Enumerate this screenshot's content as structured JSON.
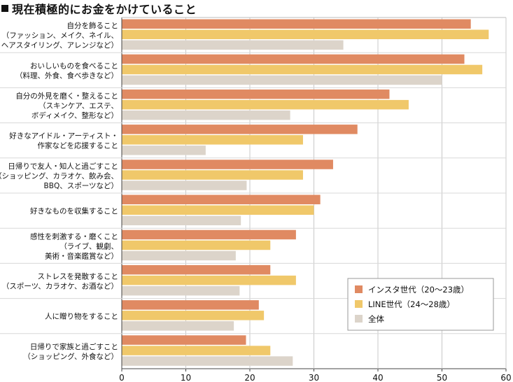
{
  "chart_data": {
    "type": "bar",
    "orientation": "horizontal",
    "title": "現在積極的にお金をかけていること",
    "categories": [
      [
        "自分を飾ること",
        "（ファッション、メイク、ネイル、",
        "ヘアスタイリング、アレンジなど）"
      ],
      [
        "おいしいものを食べること",
        "（料理、外食、食べ歩きなど）"
      ],
      [
        "自分の外見を磨く・整えること",
        "（スキンケア、エステ、",
        "ボディメイク、整形など）"
      ],
      [
        "好きなアイドル・アーティスト・",
        "作家などを応援すること"
      ],
      [
        "日帰りで友人・知人と過ごすこと",
        "（ショッピング、カラオケ、飲み会、",
        "BBQ、スポーツなど）"
      ],
      [
        "好きなものを収集すること"
      ],
      [
        "感性を刺激する・磨くこと",
        "（ライブ、観劇、",
        "美術・音楽鑑賞など）"
      ],
      [
        "ストレスを発散すること",
        "（スポーツ、カラオケ、お酒など）"
      ],
      [
        "人に贈り物をすること"
      ],
      [
        "日帰りで家族と過ごすこと",
        "（ショッピング、外食など）"
      ]
    ],
    "series": [
      {
        "name": "インスタ世代（20〜23歳）",
        "color": "#e08a62",
        "values": [
          54.5,
          53.5,
          41.8,
          36.8,
          33.0,
          31.0,
          27.2,
          23.2,
          21.4,
          19.4
        ]
      },
      {
        "name": "LINE世代（24〜28歳）",
        "color": "#f0c86a",
        "values": [
          57.3,
          56.3,
          44.8,
          28.3,
          28.3,
          30.0,
          23.2,
          27.2,
          22.2,
          23.2
        ]
      },
      {
        "name": "全体",
        "color": "#dcd4ca",
        "values": [
          34.6,
          50.0,
          26.3,
          13.1,
          19.5,
          18.6,
          17.8,
          18.4,
          17.5,
          26.7
        ]
      }
    ],
    "xlim": [
      0,
      60
    ],
    "xticks": [
      0,
      10,
      20,
      30,
      40,
      50,
      60
    ],
    "grid": "vertical",
    "legend_position": "bottom-right"
  }
}
